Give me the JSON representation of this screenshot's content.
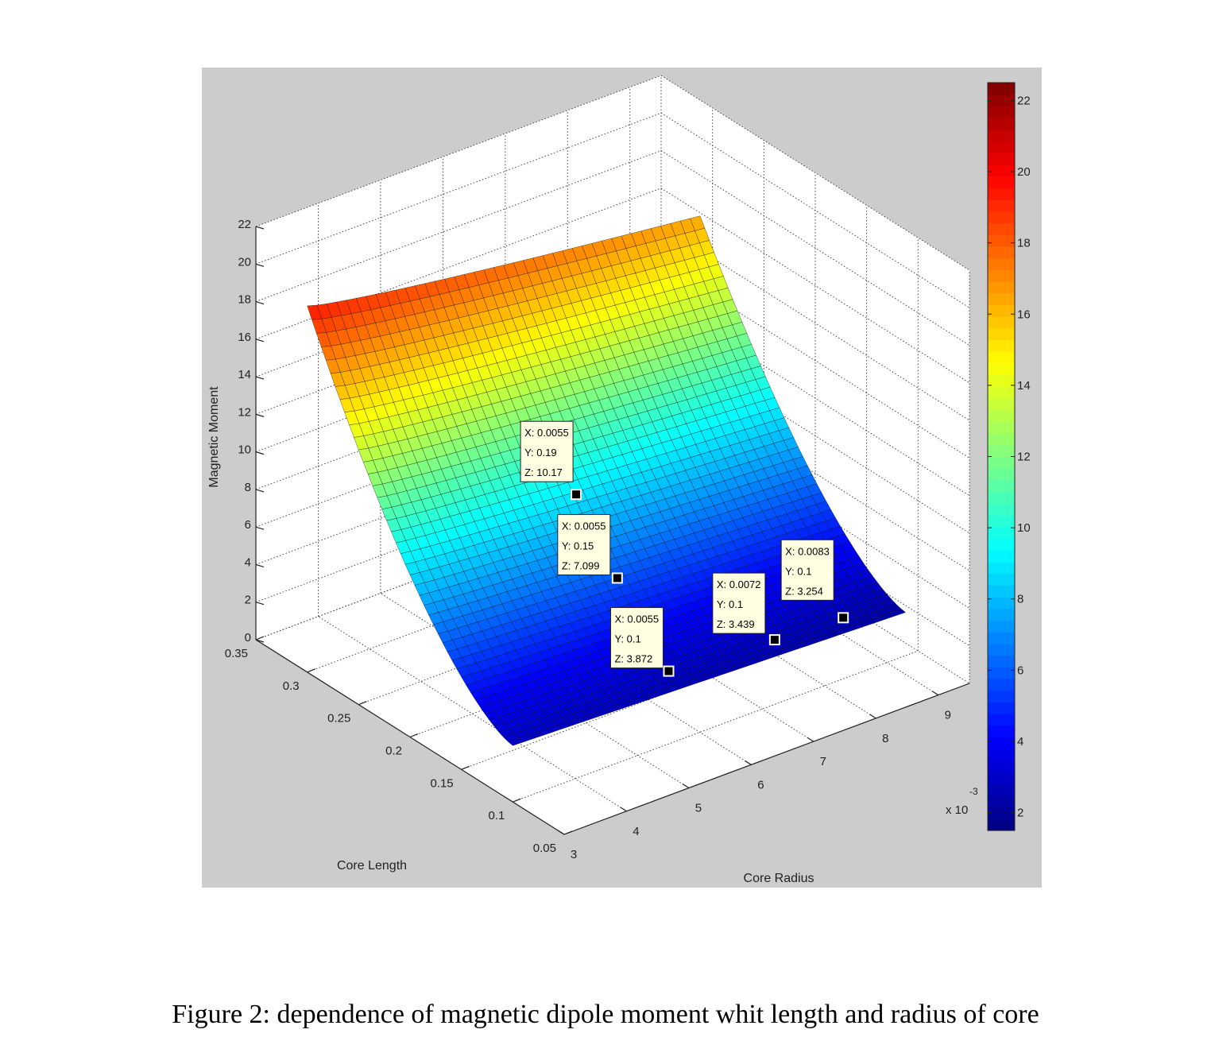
{
  "caption": "Figure 2: dependence of magnetic dipole moment whit length and radius of core",
  "chart_data": {
    "type": "surface",
    "xlabel": "Core Radius",
    "ylabel": "Core Length",
    "zlabel": "Magnetic Moment",
    "x_exponent_label": "x 10",
    "x_exponent": "-3",
    "xlim": [
      0.003,
      0.0095
    ],
    "ylim": [
      0.05,
      0.35
    ],
    "zlim": [
      0,
      22
    ],
    "x_ticks": [
      "3",
      "4",
      "5",
      "6",
      "7",
      "8",
      "9"
    ],
    "y_ticks": [
      "0.05",
      "0.1",
      "0.15",
      "0.2",
      "0.25",
      "0.3",
      "0.35"
    ],
    "z_ticks": [
      "0",
      "2",
      "4",
      "6",
      "8",
      "10",
      "12",
      "14",
      "16",
      "18",
      "20",
      "22"
    ],
    "surface": {
      "x_range": [
        0.003,
        0.0093
      ],
      "y_range": [
        0.1,
        0.3
      ],
      "corner_values": {
        "x_min_y_max": 19.5,
        "x_max_y_max": 16.5,
        "x_min_y_min": 3.0,
        "x_max_y_min": 2.3
      }
    },
    "colorbar": {
      "colormap": "jet",
      "range": [
        1.5,
        22.5
      ],
      "ticks": [
        "2",
        "4",
        "6",
        "8",
        "10",
        "12",
        "14",
        "16",
        "18",
        "20",
        "22"
      ]
    },
    "grid": true,
    "background_color": "#cccccc",
    "datatips": [
      {
        "x": 0.0055,
        "y": 0.19,
        "z": 10.17,
        "lines": [
          "X: 0.0055",
          "Y: 0.19",
          "Z: 10.17"
        ]
      },
      {
        "x": 0.0055,
        "y": 0.15,
        "z": 7.099,
        "lines": [
          "X: 0.0055",
          "Y: 0.15",
          "Z: 7.099"
        ]
      },
      {
        "x": 0.0055,
        "y": 0.1,
        "z": 3.872,
        "lines": [
          "X: 0.0055",
          "Y: 0.1",
          "Z: 3.872"
        ]
      },
      {
        "x": 0.0072,
        "y": 0.1,
        "z": 3.439,
        "lines": [
          "X: 0.0072",
          "Y: 0.1",
          "Z: 3.439"
        ]
      },
      {
        "x": 0.0083,
        "y": 0.1,
        "z": 3.254,
        "lines": [
          "X: 0.0083",
          "Y: 0.1",
          "Z: 3.254"
        ]
      }
    ]
  }
}
